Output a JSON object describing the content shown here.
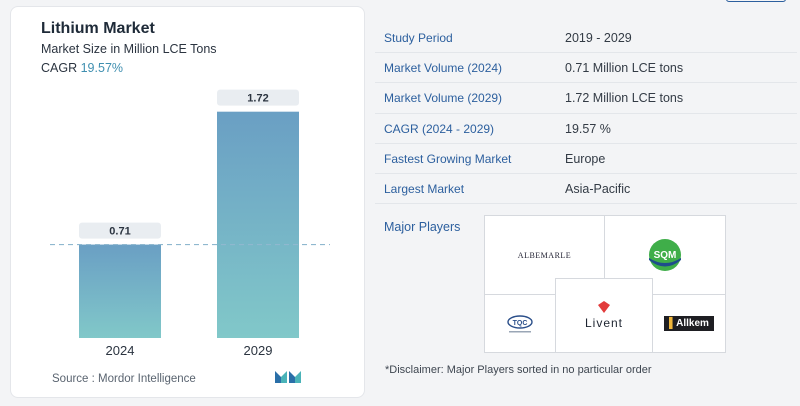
{
  "card": {
    "title": "Lithium Market",
    "subtitle": "Market Size in Million LCE Tons",
    "cagr_label": "CAGR",
    "cagr_value": "19.57%",
    "source": "Source : Mordor Intelligence"
  },
  "chart_data": {
    "type": "bar",
    "categories": [
      "2024",
      "2029"
    ],
    "values": [
      0.71,
      1.72
    ],
    "data_labels": [
      "0.71",
      "1.72"
    ],
    "title": "Lithium Market",
    "ylabel": "Market Size in Million LCE Tons",
    "ylim": [
      0,
      1.9
    ],
    "reference_line": 0.71,
    "colors": {
      "bar_top": "#6aa2c4",
      "bar_bottom": "#7fc6c9",
      "label_bg": "#e9edf1",
      "ref_line": "#8fb8cf"
    }
  },
  "table": {
    "rows": [
      {
        "key": "Study Period",
        "value": "2019 - 2029"
      },
      {
        "key": "Market Volume (2024)",
        "value": "0.71 Million LCE tons"
      },
      {
        "key": "Market Volume (2029)",
        "value": "1.72 Million LCE tons"
      },
      {
        "key": "CAGR (2024 - 2029)",
        "value": "19.57 %"
      },
      {
        "key": "Fastest Growing Market",
        "value": "Europe"
      },
      {
        "key": "Largest Market",
        "value": "Asia-Pacific"
      }
    ]
  },
  "players": {
    "label": "Major Players",
    "logos": {
      "albemarle": "ALBEMARLE",
      "sqm": "SQM",
      "tqc": "TQC",
      "livent": "Livent",
      "allkem": "Allkem"
    },
    "disclaimer": "*Disclaimer: Major Players sorted in no particular order"
  },
  "colors": {
    "accent": "#2c5f9e",
    "teal": "#3f8fb0"
  }
}
